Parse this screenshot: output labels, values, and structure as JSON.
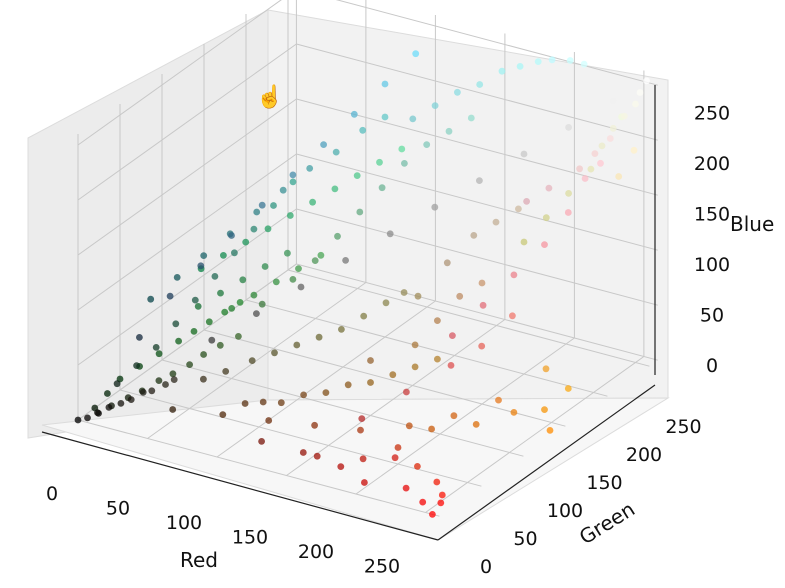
{
  "chart_data": {
    "type": "scatter",
    "dimensions": "3d",
    "title": "",
    "xlabel": "Red",
    "ylabel": "Green",
    "zlabel": "Blue",
    "xlim": [
      0,
      260
    ],
    "ylim": [
      0,
      260
    ],
    "zlim": [
      0,
      260
    ],
    "xticks": [
      "0",
      "50",
      "100",
      "150",
      "200",
      "250"
    ],
    "yticks": [
      "0",
      "50",
      "100",
      "150",
      "200",
      "250"
    ],
    "zticks": [
      "0",
      "50",
      "100",
      "150",
      "200",
      "250"
    ],
    "grid": true,
    "point_color": "rgb(Red, Green, Blue) of each point",
    "pane_color": "#f2f2f2",
    "grid_color": "#c8c8c8",
    "points_rgb": [
      [
        0,
        0,
        0
      ],
      [
        5,
        3,
        2
      ],
      [
        10,
        8,
        5
      ],
      [
        15,
        12,
        10
      ],
      [
        20,
        18,
        12
      ],
      [
        25,
        22,
        15
      ],
      [
        30,
        28,
        20
      ],
      [
        35,
        30,
        22
      ],
      [
        40,
        38,
        25
      ],
      [
        45,
        40,
        30
      ],
      [
        8,
        10,
        4
      ],
      [
        12,
        20,
        6
      ],
      [
        18,
        30,
        10
      ],
      [
        22,
        40,
        12
      ],
      [
        28,
        50,
        18
      ],
      [
        32,
        60,
        20
      ],
      [
        38,
        70,
        25
      ],
      [
        42,
        80,
        30
      ],
      [
        48,
        90,
        35
      ],
      [
        55,
        100,
        40
      ],
      [
        10,
        30,
        20
      ],
      [
        15,
        45,
        30
      ],
      [
        20,
        60,
        40
      ],
      [
        25,
        75,
        55
      ],
      [
        30,
        90,
        70
      ],
      [
        35,
        105,
        85
      ],
      [
        40,
        120,
        100
      ],
      [
        45,
        135,
        115
      ],
      [
        50,
        150,
        130
      ],
      [
        55,
        165,
        145
      ],
      [
        60,
        50,
        30
      ],
      [
        70,
        60,
        35
      ],
      [
        80,
        75,
        40
      ],
      [
        90,
        85,
        45
      ],
      [
        100,
        95,
        50
      ],
      [
        110,
        105,
        55
      ],
      [
        120,
        115,
        60
      ],
      [
        130,
        125,
        70
      ],
      [
        140,
        135,
        80
      ],
      [
        150,
        140,
        90
      ],
      [
        60,
        120,
        60
      ],
      [
        70,
        140,
        75
      ],
      [
        80,
        150,
        90
      ],
      [
        90,
        160,
        110
      ],
      [
        100,
        170,
        130
      ],
      [
        110,
        180,
        150
      ],
      [
        120,
        190,
        170
      ],
      [
        130,
        200,
        185
      ],
      [
        140,
        210,
        195
      ],
      [
        150,
        220,
        205
      ],
      [
        50,
        30,
        10
      ],
      [
        80,
        40,
        10
      ],
      [
        110,
        45,
        12
      ],
      [
        140,
        50,
        15
      ],
      [
        170,
        55,
        18
      ],
      [
        200,
        50,
        15
      ],
      [
        220,
        40,
        10
      ],
      [
        240,
        30,
        8
      ],
      [
        250,
        20,
        5
      ],
      [
        255,
        10,
        5
      ],
      [
        120,
        20,
        10
      ],
      [
        150,
        20,
        10
      ],
      [
        180,
        15,
        10
      ],
      [
        200,
        10,
        5
      ],
      [
        230,
        10,
        10
      ],
      [
        245,
        5,
        5
      ],
      [
        255,
        0,
        0
      ],
      [
        210,
        30,
        20
      ],
      [
        190,
        25,
        15
      ],
      [
        160,
        20,
        10
      ],
      [
        200,
        90,
        10
      ],
      [
        220,
        110,
        10
      ],
      [
        235,
        130,
        15
      ],
      [
        245,
        150,
        10
      ],
      [
        250,
        170,
        20
      ],
      [
        255,
        140,
        0
      ],
      [
        240,
        160,
        40
      ],
      [
        230,
        120,
        30
      ],
      [
        210,
        100,
        20
      ],
      [
        190,
        80,
        15
      ],
      [
        150,
        100,
        50
      ],
      [
        170,
        120,
        60
      ],
      [
        180,
        130,
        80
      ],
      [
        190,
        140,
        100
      ],
      [
        200,
        150,
        110
      ],
      [
        160,
        140,
        90
      ],
      [
        175,
        150,
        120
      ],
      [
        185,
        165,
        140
      ],
      [
        195,
        175,
        150
      ],
      [
        205,
        185,
        160
      ],
      [
        180,
        40,
        40
      ],
      [
        200,
        60,
        60
      ],
      [
        220,
        80,
        80
      ],
      [
        230,
        100,
        90
      ],
      [
        240,
        120,
        110
      ],
      [
        215,
        90,
        100
      ],
      [
        225,
        110,
        120
      ],
      [
        235,
        130,
        140
      ],
      [
        245,
        150,
        160
      ],
      [
        250,
        170,
        180
      ],
      [
        200,
        200,
        120
      ],
      [
        210,
        210,
        140
      ],
      [
        220,
        220,
        160
      ],
      [
        230,
        230,
        180
      ],
      [
        235,
        235,
        200
      ],
      [
        240,
        240,
        215
      ],
      [
        245,
        245,
        225
      ],
      [
        250,
        250,
        235
      ],
      [
        252,
        252,
        245
      ],
      [
        255,
        255,
        255
      ],
      [
        150,
        230,
        230
      ],
      [
        160,
        240,
        240
      ],
      [
        170,
        245,
        245
      ],
      [
        140,
        220,
        225
      ],
      [
        130,
        210,
        215
      ],
      [
        120,
        200,
        205
      ],
      [
        180,
        250,
        250
      ],
      [
        190,
        250,
        255
      ],
      [
        200,
        255,
        255
      ],
      [
        210,
        255,
        255
      ],
      [
        100,
        200,
        200
      ],
      [
        90,
        190,
        190
      ],
      [
        80,
        175,
        175
      ],
      [
        70,
        160,
        165
      ],
      [
        60,
        145,
        150
      ],
      [
        50,
        130,
        135
      ],
      [
        40,
        115,
        120
      ],
      [
        30,
        100,
        105
      ],
      [
        20,
        85,
        90
      ],
      [
        10,
        70,
        75
      ],
      [
        30,
        120,
        60
      ],
      [
        40,
        130,
        70
      ],
      [
        50,
        140,
        80
      ],
      [
        60,
        150,
        90
      ],
      [
        20,
        110,
        50
      ],
      [
        35,
        125,
        45
      ],
      [
        45,
        135,
        55
      ],
      [
        55,
        145,
        65
      ],
      [
        65,
        155,
        75
      ],
      [
        75,
        165,
        85
      ],
      [
        60,
        180,
        120
      ],
      [
        70,
        190,
        130
      ],
      [
        80,
        200,
        140
      ],
      [
        90,
        210,
        150
      ],
      [
        100,
        220,
        160
      ],
      [
        50,
        170,
        110
      ],
      [
        40,
        160,
        100
      ],
      [
        30,
        150,
        90
      ],
      [
        20,
        140,
        80
      ],
      [
        10,
        130,
        70
      ],
      [
        240,
        200,
        200
      ],
      [
        245,
        210,
        210
      ],
      [
        250,
        220,
        220
      ],
      [
        230,
        180,
        190
      ],
      [
        220,
        170,
        180
      ],
      [
        250,
        230,
        180
      ],
      [
        255,
        240,
        200
      ],
      [
        255,
        200,
        210
      ],
      [
        250,
        190,
        200
      ],
      [
        240,
        250,
        220
      ],
      [
        110,
        60,
        20
      ],
      [
        130,
        80,
        25
      ],
      [
        150,
        100,
        30
      ],
      [
        160,
        110,
        35
      ],
      [
        170,
        120,
        40
      ],
      [
        180,
        130,
        45
      ],
      [
        140,
        90,
        30
      ],
      [
        120,
        70,
        25
      ],
      [
        100,
        55,
        20
      ],
      [
        90,
        50,
        18
      ],
      [
        60,
        60,
        60
      ],
      [
        80,
        80,
        80
      ],
      [
        100,
        100,
        100
      ],
      [
        120,
        120,
        120
      ],
      [
        140,
        140,
        140
      ],
      [
        160,
        160,
        160
      ],
      [
        180,
        180,
        180
      ],
      [
        200,
        200,
        200
      ],
      [
        220,
        220,
        220
      ],
      [
        240,
        240,
        240
      ],
      [
        20,
        40,
        60
      ],
      [
        30,
        60,
        90
      ],
      [
        40,
        80,
        110
      ],
      [
        50,
        100,
        130
      ],
      [
        60,
        120,
        150
      ],
      [
        70,
        140,
        170
      ],
      [
        80,
        160,
        190
      ],
      [
        90,
        180,
        210
      ],
      [
        100,
        200,
        230
      ],
      [
        110,
        220,
        250
      ],
      [
        0,
        20,
        0
      ],
      [
        0,
        35,
        5
      ],
      [
        0,
        50,
        10
      ],
      [
        5,
        65,
        15
      ],
      [
        10,
        80,
        20
      ],
      [
        15,
        95,
        25
      ],
      [
        20,
        105,
        30
      ],
      [
        25,
        115,
        35
      ],
      [
        30,
        125,
        40
      ],
      [
        35,
        135,
        45
      ]
    ]
  }
}
